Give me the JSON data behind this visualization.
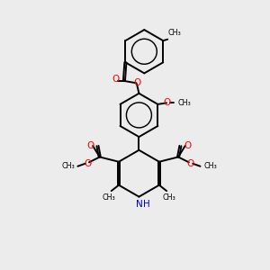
{
  "bg_color": "#ececec",
  "bond_color": "#000000",
  "o_color": "#ff0000",
  "n_color": "#0000cc",
  "lw": 1.4,
  "dbo": 0.035,
  "xlim": [
    0,
    10
  ],
  "ylim": [
    0,
    10
  ]
}
